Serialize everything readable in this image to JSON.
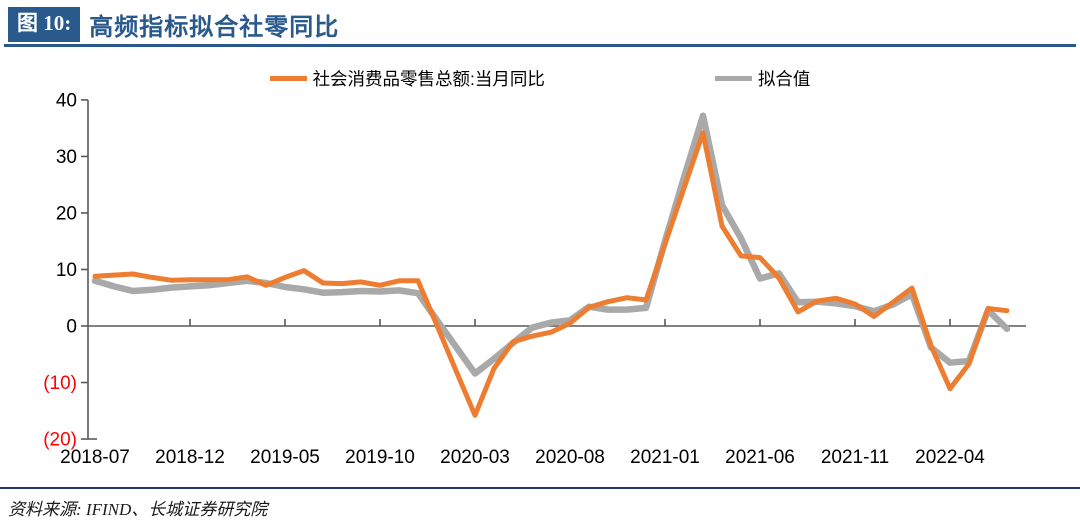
{
  "header": {
    "badge": "图 10:",
    "title": "高频指标拟合社零同比"
  },
  "legend": [
    {
      "label": "社会消费品零售总额:当月同比",
      "color": "#ED7D31"
    },
    {
      "label": "拟合值",
      "color": "#A9A9A9"
    }
  ],
  "source": "资料来源: IFIND、长城证券研究院",
  "colors": {
    "accent_navy": "#2A5A8C",
    "footer_rule_navy": "#1F3864",
    "axis_gray": "#595959",
    "negative_label_red": "#FF0000",
    "series_actual": "#ED7D31",
    "series_fitted": "#A9A9A9"
  },
  "chart_data": {
    "type": "line",
    "title": "高频指标拟合社零同比",
    "x": [
      "2018-07",
      "2018-08",
      "2018-09",
      "2018-10",
      "2018-11",
      "2018-12",
      "2019-01",
      "2019-02",
      "2019-03",
      "2019-04",
      "2019-05",
      "2019-06",
      "2019-07",
      "2019-08",
      "2019-09",
      "2019-10",
      "2019-11",
      "2019-12",
      "2020-01",
      "2020-02",
      "2020-03",
      "2020-04",
      "2020-05",
      "2020-06",
      "2020-07",
      "2020-08",
      "2020-09",
      "2020-10",
      "2020-11",
      "2020-12",
      "2021-01",
      "2021-02",
      "2021-03",
      "2021-04",
      "2021-05",
      "2021-06",
      "2021-07",
      "2021-08",
      "2021-09",
      "2021-10",
      "2021-11",
      "2021-12",
      "2022-01",
      "2022-02",
      "2022-03",
      "2022-04",
      "2022-05",
      "2022-06",
      "2022-07"
    ],
    "series": [
      {
        "name": "社会消费品零售总额:当月同比",
        "color": "#ED7D31",
        "values": [
          8.8,
          9.0,
          9.2,
          8.6,
          8.1,
          8.2,
          8.2,
          8.2,
          8.7,
          7.2,
          8.6,
          9.8,
          7.6,
          7.5,
          7.8,
          7.2,
          8.0,
          8.0,
          0.1,
          -7.9,
          -15.8,
          -7.5,
          -2.8,
          -1.8,
          -1.1,
          0.5,
          3.3,
          4.3,
          5.0,
          4.6,
          14.5,
          24.4,
          34.2,
          17.7,
          12.4,
          12.1,
          8.5,
          2.5,
          4.4,
          4.9,
          3.9,
          1.7,
          4.2,
          6.7,
          -3.5,
          -11.1,
          -6.7,
          3.1,
          2.7
        ]
      },
      {
        "name": "拟合值",
        "color": "#A9A9A9",
        "values": [
          8.0,
          7.0,
          6.2,
          6.4,
          6.8,
          7.0,
          7.2,
          7.6,
          8.0,
          7.6,
          6.9,
          6.5,
          5.9,
          6.0,
          6.2,
          6.1,
          6.3,
          5.8,
          1.0,
          -3.7,
          -8.4,
          -5.8,
          -3.0,
          -0.3,
          0.6,
          1.0,
          3.4,
          2.9,
          2.9,
          3.2,
          15.0,
          26.3,
          37.2,
          21.4,
          15.5,
          8.4,
          9.3,
          4.2,
          4.3,
          4.0,
          3.5,
          2.6,
          3.8,
          5.6,
          -3.8,
          -6.5,
          -6.2,
          2.8,
          -0.5
        ]
      }
    ],
    "ylim": [
      -20,
      40
    ],
    "y_ticks": [
      40,
      30,
      20,
      10,
      0,
      -10,
      -20
    ],
    "y_tick_labels": [
      "40",
      "30",
      "20",
      "10",
      "0",
      "(10)",
      "(20)"
    ],
    "x_tick_indices": [
      0,
      5,
      10,
      15,
      20,
      25,
      30,
      35,
      40,
      45
    ],
    "x_tick_labels": [
      "2018-07",
      "2018-12",
      "2019-05",
      "2019-10",
      "2020-03",
      "2020-08",
      "2021-01",
      "2021-06",
      "2021-11",
      "2022-04"
    ],
    "grid": false,
    "legend_position": "top-center"
  }
}
